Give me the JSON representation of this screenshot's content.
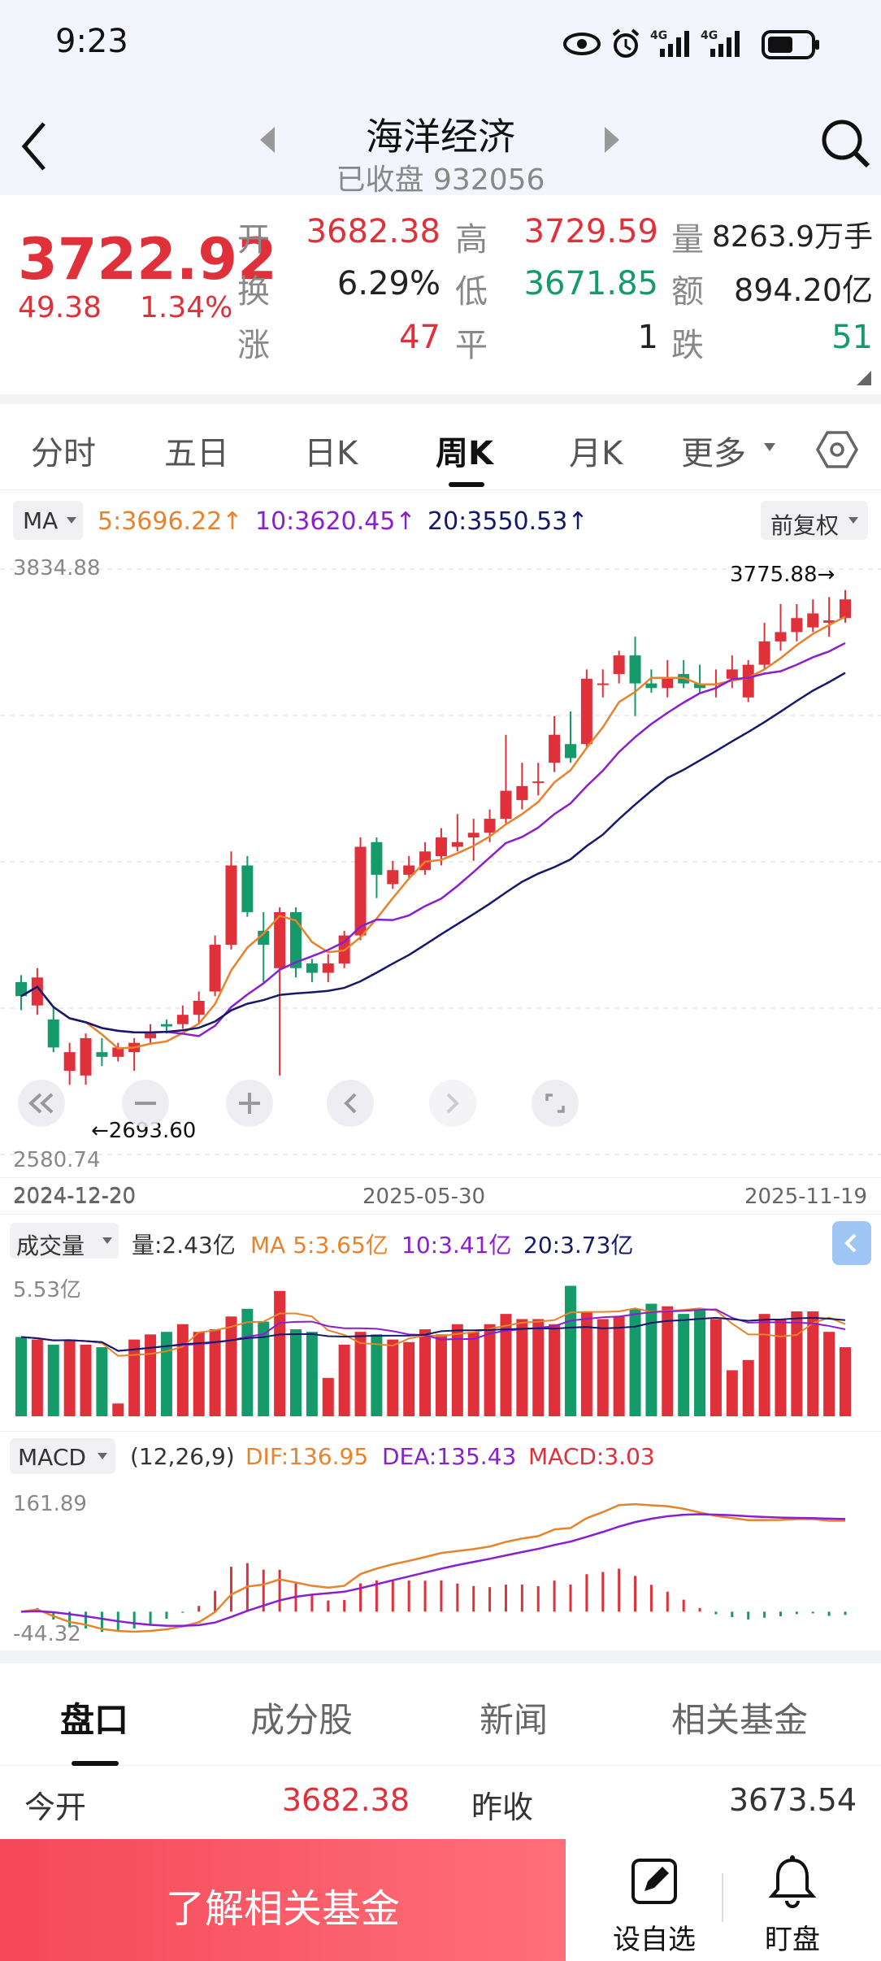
{
  "status": {
    "time": "9:23",
    "net1": "4G",
    "net2": "4G"
  },
  "header": {
    "title": "海洋经济",
    "subtitle_status": "已收盘",
    "code": "932056"
  },
  "quote": {
    "price": "3722.92",
    "change": "49.38",
    "pct": "1.34%",
    "open_label": "开",
    "open": "3682.38",
    "high_label": "高",
    "high": "3729.59",
    "vol_label": "量",
    "vol": "8263.9万手",
    "turn_label": "换",
    "turn": "6.29%",
    "low_label": "低",
    "low": "3671.85",
    "amt_label": "额",
    "amt": "894.20亿",
    "up_label": "涨",
    "up": "47",
    "flat_label": "平",
    "flat": "1",
    "down_label": "跌",
    "down": "51"
  },
  "tabs": [
    {
      "label": "分时"
    },
    {
      "label": "五日"
    },
    {
      "label": "日K"
    },
    {
      "label": "周K"
    },
    {
      "label": "月K"
    },
    {
      "label": "更多"
    }
  ],
  "ma": {
    "label": "MA",
    "ma5": "5:3696.22↑",
    "ma10": "10:3620.45↑",
    "ma20": "20:3550.53↑",
    "adjust": "前复权"
  },
  "kline": {
    "ymax": "3834.88",
    "ymin": "2580.74",
    "high_mark": "3775.88→",
    "low_mark": "←2693.60",
    "date_start": "2024-12-20",
    "date_mid": "2025-05-30",
    "date_end": "2025-11-19"
  },
  "volume": {
    "label": "成交量",
    "vol": "量:2.43亿",
    "ma5": "MA 5:3.65亿",
    "ma10": "10:3.41亿",
    "ma20": "20:3.73亿",
    "ymax": "5.53亿"
  },
  "macd": {
    "label": "MACD",
    "params": "(12,26,9)",
    "dif": "DIF:136.95",
    "dea": "DEA:135.43",
    "macd": "MACD:3.03",
    "ymax": "161.89",
    "ymin": "-44.32"
  },
  "bottom_tabs": [
    {
      "label": "盘口"
    },
    {
      "label": "成分股"
    },
    {
      "label": "新闻"
    },
    {
      "label": "相关基金"
    }
  ],
  "detail": {
    "open_label": "今开",
    "open": "3682.38",
    "prev_label": "昨收",
    "prev": "3673.54"
  },
  "actions": {
    "cta": "了解相关基金",
    "watch": "设自选",
    "monitor": "盯盘"
  },
  "colors": {
    "up": "#e0313b",
    "down": "#159a6a",
    "ma5": "#e8822b",
    "ma10": "#8a1fd0",
    "ma20": "#14196a"
  },
  "chart_data": [
    {
      "type": "candlestick",
      "title": "",
      "y_range": [
        2580.74,
        3834.88
      ],
      "x_labels": [
        "2024-12-20",
        "2025-05-30",
        "2025-11-19"
      ],
      "candles": [
        [
          2950,
          2920,
          2965,
          2890
        ],
        [
          2900,
          2960,
          2980,
          2880
        ],
        [
          2870,
          2810,
          2900,
          2800
        ],
        [
          2760,
          2800,
          2820,
          2730
        ],
        [
          2750,
          2830,
          2840,
          2730
        ],
        [
          2800,
          2790,
          2830,
          2770
        ],
        [
          2790,
          2810,
          2820,
          2780
        ],
        [
          2800,
          2820,
          2830,
          2760
        ],
        [
          2830,
          2840,
          2860,
          2820
        ],
        [
          2860,
          2855,
          2870,
          2840
        ],
        [
          2860,
          2880,
          2900,
          2850
        ],
        [
          2880,
          2910,
          2930,
          2860
        ],
        [
          2930,
          3030,
          3050,
          2920
        ],
        [
          3030,
          3200,
          3230,
          3020
        ],
        [
          3200,
          3100,
          3220,
          3090
        ],
        [
          3060,
          3030,
          3100,
          2950
        ],
        [
          2980,
          3100,
          3110,
          2750
        ],
        [
          3100,
          2980,
          3110,
          2960
        ],
        [
          2990,
          2970,
          3000,
          2950
        ],
        [
          2970,
          2990,
          3010,
          2950
        ],
        [
          2990,
          3050,
          3060,
          2980
        ],
        [
          3050,
          3240,
          3260,
          3040
        ],
        [
          3250,
          3180,
          3260,
          3130
        ],
        [
          3160,
          3190,
          3210,
          3150
        ],
        [
          3180,
          3200,
          3220,
          3170
        ],
        [
          3190,
          3230,
          3250,
          3180
        ],
        [
          3220,
          3260,
          3280,
          3200
        ],
        [
          3240,
          3250,
          3310,
          3230
        ],
        [
          3260,
          3270,
          3300,
          3210
        ],
        [
          3270,
          3300,
          3320,
          3250
        ],
        [
          3300,
          3360,
          3480,
          3290
        ],
        [
          3340,
          3370,
          3420,
          3320
        ],
        [
          3380,
          3380,
          3420,
          3350
        ],
        [
          3420,
          3480,
          3520,
          3400
        ],
        [
          3460,
          3430,
          3530,
          3420
        ],
        [
          3460,
          3600,
          3620,
          3450
        ],
        [
          3590,
          3590,
          3620,
          3560
        ],
        [
          3610,
          3650,
          3660,
          3590
        ],
        [
          3650,
          3590,
          3690,
          3520
        ],
        [
          3590,
          3580,
          3620,
          3570
        ],
        [
          3580,
          3600,
          3640,
          3560
        ],
        [
          3610,
          3590,
          3640,
          3580
        ],
        [
          3590,
          3580,
          3630,
          3570
        ],
        [
          3590,
          3590,
          3620,
          3560
        ],
        [
          3600,
          3620,
          3650,
          3580
        ],
        [
          3560,
          3630,
          3640,
          3550
        ],
        [
          3630,
          3680,
          3720,
          3620
        ],
        [
          3680,
          3700,
          3760,
          3660
        ],
        [
          3700,
          3730,
          3760,
          3680
        ],
        [
          3710,
          3740,
          3770,
          3700
        ],
        [
          3720,
          3725,
          3775,
          3690
        ],
        [
          3730,
          3770,
          3790,
          3720
        ]
      ],
      "ma5": "orange",
      "ma10": "purple",
      "ma20": "navy"
    },
    {
      "type": "bar",
      "title": "成交量",
      "y_range": [
        0,
        5.53
      ],
      "unit": "亿",
      "ma5": 3.65,
      "ma10": 3.41,
      "ma20": 3.73,
      "last": 2.43
    },
    {
      "type": "bar",
      "title": "MACD",
      "params": "(12,26,9)",
      "y_range": [
        -44.32,
        161.89
      ],
      "dif": 136.95,
      "dea": 135.43,
      "macd": 3.03
    }
  ]
}
